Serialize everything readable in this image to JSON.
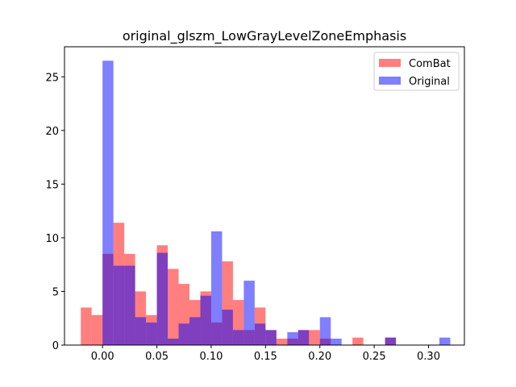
{
  "chart_data": {
    "type": "histogram",
    "title": "original_glszm_LowGrayLevelZoneEmphasis",
    "xlabel": "",
    "ylabel": "",
    "xlim": [
      -0.035,
      0.333
    ],
    "ylim": [
      0,
      27.8
    ],
    "grid": false,
    "legend_position": "top-right",
    "xticks": [
      0.0,
      0.05,
      0.1,
      0.15,
      0.2,
      0.25,
      0.3
    ],
    "xtick_labels": [
      "0.00",
      "0.05",
      "0.10",
      "0.15",
      "0.20",
      "0.25",
      "0.30"
    ],
    "yticks": [
      0,
      5,
      10,
      15,
      20,
      25
    ],
    "ytick_labels": [
      "0",
      "5",
      "10",
      "15",
      "20",
      "25"
    ],
    "series": [
      {
        "name": "ComBat",
        "color": "#ff0000",
        "alpha": 0.5,
        "bin_width": 0.01,
        "bins": [
          [
            -0.02,
            3.5
          ],
          [
            -0.01,
            2.8
          ],
          [
            0.0,
            8.5
          ],
          [
            0.01,
            11.4
          ],
          [
            0.02,
            8.5
          ],
          [
            0.03,
            5.0
          ],
          [
            0.04,
            2.8
          ],
          [
            0.05,
            9.3
          ],
          [
            0.06,
            7.1
          ],
          [
            0.07,
            5.7
          ],
          [
            0.08,
            4.2
          ],
          [
            0.09,
            5.0
          ],
          [
            0.1,
            2.1
          ],
          [
            0.11,
            7.8
          ],
          [
            0.12,
            4.2
          ],
          [
            0.13,
            1.4
          ],
          [
            0.14,
            3.5
          ],
          [
            0.15,
            1.4
          ],
          [
            0.16,
            0.6
          ],
          [
            0.17,
            0.6
          ],
          [
            0.18,
            1.4
          ],
          [
            0.19,
            1.4
          ],
          [
            0.2,
            0.6
          ],
          [
            0.23,
            0.7
          ],
          [
            0.26,
            0.7
          ]
        ]
      },
      {
        "name": "Original",
        "color": "#0000ff",
        "alpha": 0.5,
        "bin_width": 0.01,
        "bins": [
          [
            0.0,
            26.5
          ],
          [
            0.01,
            7.4
          ],
          [
            0.02,
            7.4
          ],
          [
            0.03,
            2.6
          ],
          [
            0.04,
            2.1
          ],
          [
            0.05,
            8.6
          ],
          [
            0.06,
            0.6
          ],
          [
            0.07,
            2.0
          ],
          [
            0.08,
            2.6
          ],
          [
            0.09,
            4.6
          ],
          [
            0.1,
            10.6
          ],
          [
            0.11,
            3.3
          ],
          [
            0.12,
            1.4
          ],
          [
            0.13,
            6.0
          ],
          [
            0.14,
            2.0
          ],
          [
            0.15,
            1.4
          ],
          [
            0.17,
            1.2
          ],
          [
            0.18,
            1.4
          ],
          [
            0.2,
            2.6
          ],
          [
            0.21,
            0.6
          ],
          [
            0.26,
            0.7
          ],
          [
            0.31,
            0.7
          ]
        ]
      }
    ]
  }
}
